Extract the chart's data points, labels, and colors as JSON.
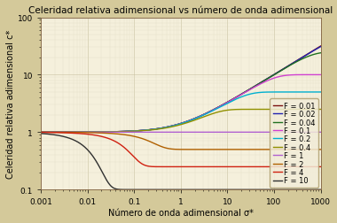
{
  "title": "Celeridad relativa adimensional vs número de onda adimensional",
  "xlabel": "Número de onda adimensional σ*",
  "ylabel": "Celeridad relativa adimensional c*",
  "background_color": "#d4c99a",
  "plot_bg_color": "#f5f0dc",
  "grid_color_major": "#c8c0a0",
  "grid_color_minor": "#ddd8c0",
  "F_values": [
    0.01,
    0.02,
    0.04,
    0.1,
    0.2,
    0.4,
    1,
    2,
    4,
    10
  ],
  "colors": [
    "#7b1010",
    "#2020b0",
    "#207020",
    "#d040d0",
    "#00b0d0",
    "#909000",
    "#b060d0",
    "#b06000",
    "#d02010",
    "#303030"
  ],
  "legend_labels": [
    "F = 0.01",
    "F = 0.02",
    "F = 0.04",
    "F = 0.1",
    "F = 0.2",
    "F = 0.4",
    "F = 1",
    "F = 2",
    "F = 4",
    "F = 10"
  ],
  "title_fontsize": 7.5,
  "axis_label_fontsize": 7.0,
  "tick_fontsize": 6.5,
  "legend_fontsize": 6.0,
  "linewidth": 1.0,
  "xlim": [
    0.001,
    1000
  ],
  "ylim": [
    0.1,
    100
  ]
}
